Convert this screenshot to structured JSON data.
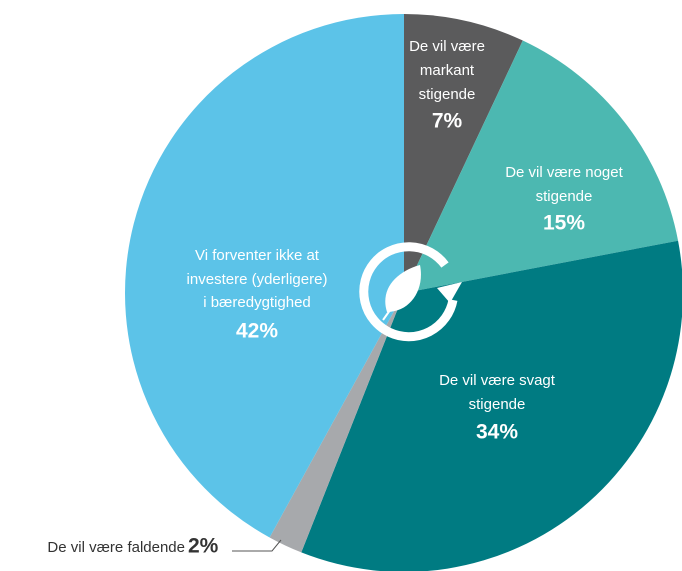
{
  "chart_data": {
    "type": "pie",
    "categories": [
      [
        "De vil være",
        "markant",
        "stigende"
      ],
      [
        "De vil være noget",
        "stigende"
      ],
      [
        "De vil være svagt",
        "stigende"
      ],
      [
        "De vil være faldende"
      ],
      [
        "Vi forventer ikke at",
        "investere (yderligere)",
        "i bæredygtighed"
      ]
    ],
    "values": [
      7,
      15,
      34,
      2,
      42
    ],
    "value_labels": [
      "7%",
      "15%",
      "34%",
      "2%",
      "42%"
    ],
    "colors": [
      "#5b5b5c",
      "#4cb8b1",
      "#007b82",
      "#a7a9ac",
      "#5cc3e8"
    ]
  }
}
